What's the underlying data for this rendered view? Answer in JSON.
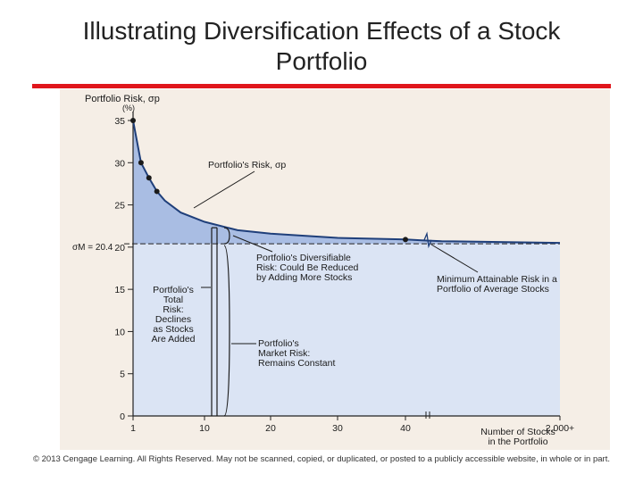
{
  "slide": {
    "title_line1": "Illustrating Diversification Effects of a Stock",
    "title_line2": "Portfolio",
    "footer": "© 2013 Cengage Learning. All Rights Reserved. May not be scanned, copied, or duplicated, or posted to a publicly accessible website, in whole or in part.",
    "accent_color": "#e0161c"
  },
  "chart_data": {
    "type": "area",
    "ylabel": "Portfolio Risk, σp",
    "ylabel_unit": "(%)",
    "xlabel_line1": "Number of Stocks",
    "xlabel_line2": "in the Portfolio",
    "x_ticks": [
      {
        "value": 1,
        "label": "1"
      },
      {
        "value": 10,
        "label": "10"
      },
      {
        "value": 20,
        "label": "20"
      },
      {
        "value": 30,
        "label": "30"
      },
      {
        "value": 40,
        "label": "40"
      },
      {
        "value": 2000,
        "label": "2,000+"
      }
    ],
    "y_ticks": [
      0,
      5,
      10,
      15,
      20,
      25,
      30,
      35
    ],
    "ylim": [
      0,
      35
    ],
    "market_risk": {
      "value": 20.4,
      "label": "σM = 20.4"
    },
    "series": [
      {
        "x": [
          1,
          2,
          3,
          4,
          5,
          7,
          10,
          15,
          20,
          30,
          40,
          60,
          100,
          2000
        ],
        "y": [
          35,
          30,
          28.2,
          26.6,
          25.5,
          24.1,
          23.0,
          22.0,
          21.6,
          21.1,
          20.9,
          20.8,
          20.7,
          20.5
        ]
      }
    ],
    "highlighted_points": [
      {
        "x": 1,
        "y": 35
      },
      {
        "x": 2,
        "y": 30
      },
      {
        "x": 3,
        "y": 28.2
      },
      {
        "x": 4,
        "y": 26.6
      },
      {
        "x": 40,
        "y": 20.9
      }
    ],
    "annotations": {
      "curve": "Portfolio's Risk, σp",
      "diversifiable": [
        "Portfolio's Diversifiable",
        "Risk: Could Be Reduced",
        "by Adding More Stocks"
      ],
      "minimum": [
        "Minimum Attainable Risk in a",
        "Portfolio of Average Stocks"
      ],
      "total": [
        "Portfolio's",
        "Total",
        "Risk:",
        "Declines",
        "as Stocks",
        "Are Added"
      ],
      "market": [
        "Portfolio's",
        "Market Risk:",
        "Remains Constant"
      ]
    },
    "colors": {
      "diversifiable_fill": "#a9bde3",
      "market_fill": "#dbe4f4",
      "curve": "#1f3f7a",
      "axis": "#222222"
    }
  }
}
